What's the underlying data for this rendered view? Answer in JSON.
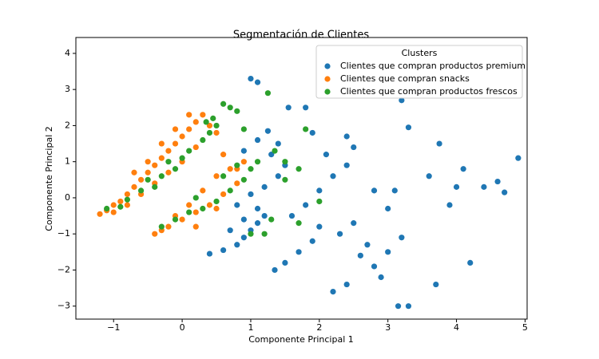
{
  "chart_data": {
    "type": "scatter",
    "title": "Segmentación de Clientes",
    "x_label": "Componente Principal 1",
    "y_label": "Componente Principal 2",
    "xlim": [
      -1.55,
      5.03
    ],
    "ylim": [
      -3.36,
      4.44
    ],
    "xticks": [
      {
        "value": -1,
        "label": "−1"
      },
      0,
      1,
      2,
      3,
      4,
      5
    ],
    "yticks": [
      {
        "value": -3,
        "label": "−3"
      },
      {
        "value": -2,
        "label": "−2"
      },
      {
        "value": -1,
        "label": "−1"
      },
      0,
      1,
      2,
      3,
      4
    ],
    "grid": false,
    "legend": "upper right",
    "legend_title": "Clusters",
    "series": [
      {
        "name": "Clientes que compran productos premium",
        "color": "#1f77b4",
        "x": [
          0.4,
          0.6,
          0.8,
          0.9,
          1.0,
          1.1,
          1.2,
          0.7,
          0.9,
          1.1,
          0.8,
          1.0,
          1.2,
          1.4,
          1.5,
          1.3,
          1.1,
          1.25,
          0.9,
          1.0,
          1.1,
          1.55,
          1.8,
          1.35,
          1.5,
          1.7,
          1.9,
          2.0,
          1.6,
          1.8,
          2.0,
          2.2,
          2.4,
          2.1,
          2.5,
          2.4,
          2.3,
          2.5,
          2.6,
          2.2,
          2.4,
          2.8,
          3.0,
          3.2,
          3.0,
          2.8,
          3.1,
          3.3,
          3.2,
          3.6,
          3.75,
          3.7,
          3.9,
          4.0,
          4.1,
          4.2,
          4.4,
          4.6,
          4.7,
          4.9,
          3.15,
          3.3,
          2.9,
          2.7,
          1.9,
          1.4
        ],
        "values": [
          -1.55,
          -1.45,
          -1.3,
          -1.1,
          -0.9,
          -0.7,
          -0.5,
          -0.9,
          -0.6,
          -0.3,
          -0.2,
          0.1,
          0.3,
          0.6,
          0.9,
          1.2,
          1.6,
          1.85,
          1.3,
          3.3,
          3.2,
          2.5,
          2.5,
          -2.0,
          -1.8,
          -1.5,
          -1.2,
          -0.8,
          -0.5,
          -0.2,
          0.2,
          0.6,
          0.9,
          1.2,
          1.4,
          1.7,
          -1.0,
          -0.7,
          -1.6,
          -2.6,
          -2.4,
          -1.9,
          -1.5,
          -1.1,
          -0.3,
          0.2,
          0.2,
          1.95,
          2.7,
          0.6,
          1.5,
          -2.4,
          -0.2,
          0.3,
          0.8,
          -1.8,
          0.3,
          0.45,
          0.15,
          1.1,
          -3.0,
          -3.0,
          -2.2,
          -1.3,
          1.8,
          1.5
        ]
      },
      {
        "name": "Clientes que compran snacks",
        "color": "#ff7f0e",
        "x": [
          -1.2,
          -1.1,
          -1.0,
          -0.9,
          -0.8,
          -0.7,
          -0.6,
          -0.5,
          -0.4,
          -0.3,
          -0.2,
          -0.1,
          0.0,
          0.1,
          0.2,
          0.3,
          -1.0,
          -0.8,
          -0.6,
          -0.4,
          -0.2,
          0.0,
          0.2,
          -0.7,
          -0.5,
          -0.3,
          -0.1,
          0.1,
          0.4,
          0.5,
          -0.4,
          -0.3,
          -0.2,
          0.0,
          0.2,
          0.4,
          0.6,
          0.8,
          0.7,
          0.5,
          0.3,
          0.1,
          -0.1,
          0.9,
          0.6,
          0.8,
          0.2,
          0.5
        ],
        "values": [
          -0.45,
          -0.35,
          -0.2,
          -0.1,
          0.1,
          0.3,
          0.5,
          0.7,
          0.9,
          1.1,
          1.3,
          1.5,
          1.7,
          1.9,
          2.1,
          2.3,
          -0.4,
          -0.2,
          0.1,
          0.4,
          0.7,
          1.0,
          1.4,
          0.7,
          1.0,
          1.5,
          1.9,
          2.3,
          2.0,
          1.8,
          -1.0,
          -0.9,
          -0.8,
          -0.6,
          -0.4,
          -0.2,
          0.1,
          0.4,
          0.8,
          0.6,
          0.2,
          -0.2,
          -0.5,
          1.0,
          1.2,
          0.8,
          -0.8,
          -0.3
        ]
      },
      {
        "name": "Clientes que compran productos frescos",
        "color": "#2ca02c",
        "x": [
          -1.1,
          -0.9,
          -0.8,
          -0.6,
          -0.4,
          -0.3,
          -0.1,
          0.0,
          -0.2,
          0.1,
          -0.5,
          0.3,
          0.4,
          0.5,
          0.6,
          0.7,
          0.8,
          0.45,
          -0.3,
          -0.1,
          0.1,
          0.3,
          0.5,
          0.7,
          0.9,
          1.0,
          0.8,
          0.6,
          1.1,
          0.2,
          1.0,
          1.2,
          1.3,
          1.5,
          1.7,
          1.8,
          1.35,
          0.9,
          1.7,
          2.0,
          1.5,
          1.25,
          0.35
        ],
        "values": [
          -0.3,
          -0.25,
          -0.05,
          0.2,
          0.3,
          0.6,
          0.8,
          1.1,
          1.0,
          1.3,
          0.5,
          1.6,
          1.8,
          2.0,
          2.6,
          2.5,
          2.4,
          2.2,
          -0.8,
          -0.6,
          -0.4,
          -0.3,
          -0.1,
          0.2,
          0.5,
          0.8,
          0.9,
          0.6,
          1.0,
          0.0,
          -1.0,
          -1.0,
          -0.6,
          0.5,
          0.8,
          1.9,
          1.3,
          1.9,
          -0.7,
          -0.1,
          1.0,
          2.9,
          2.1
        ]
      }
    ]
  }
}
